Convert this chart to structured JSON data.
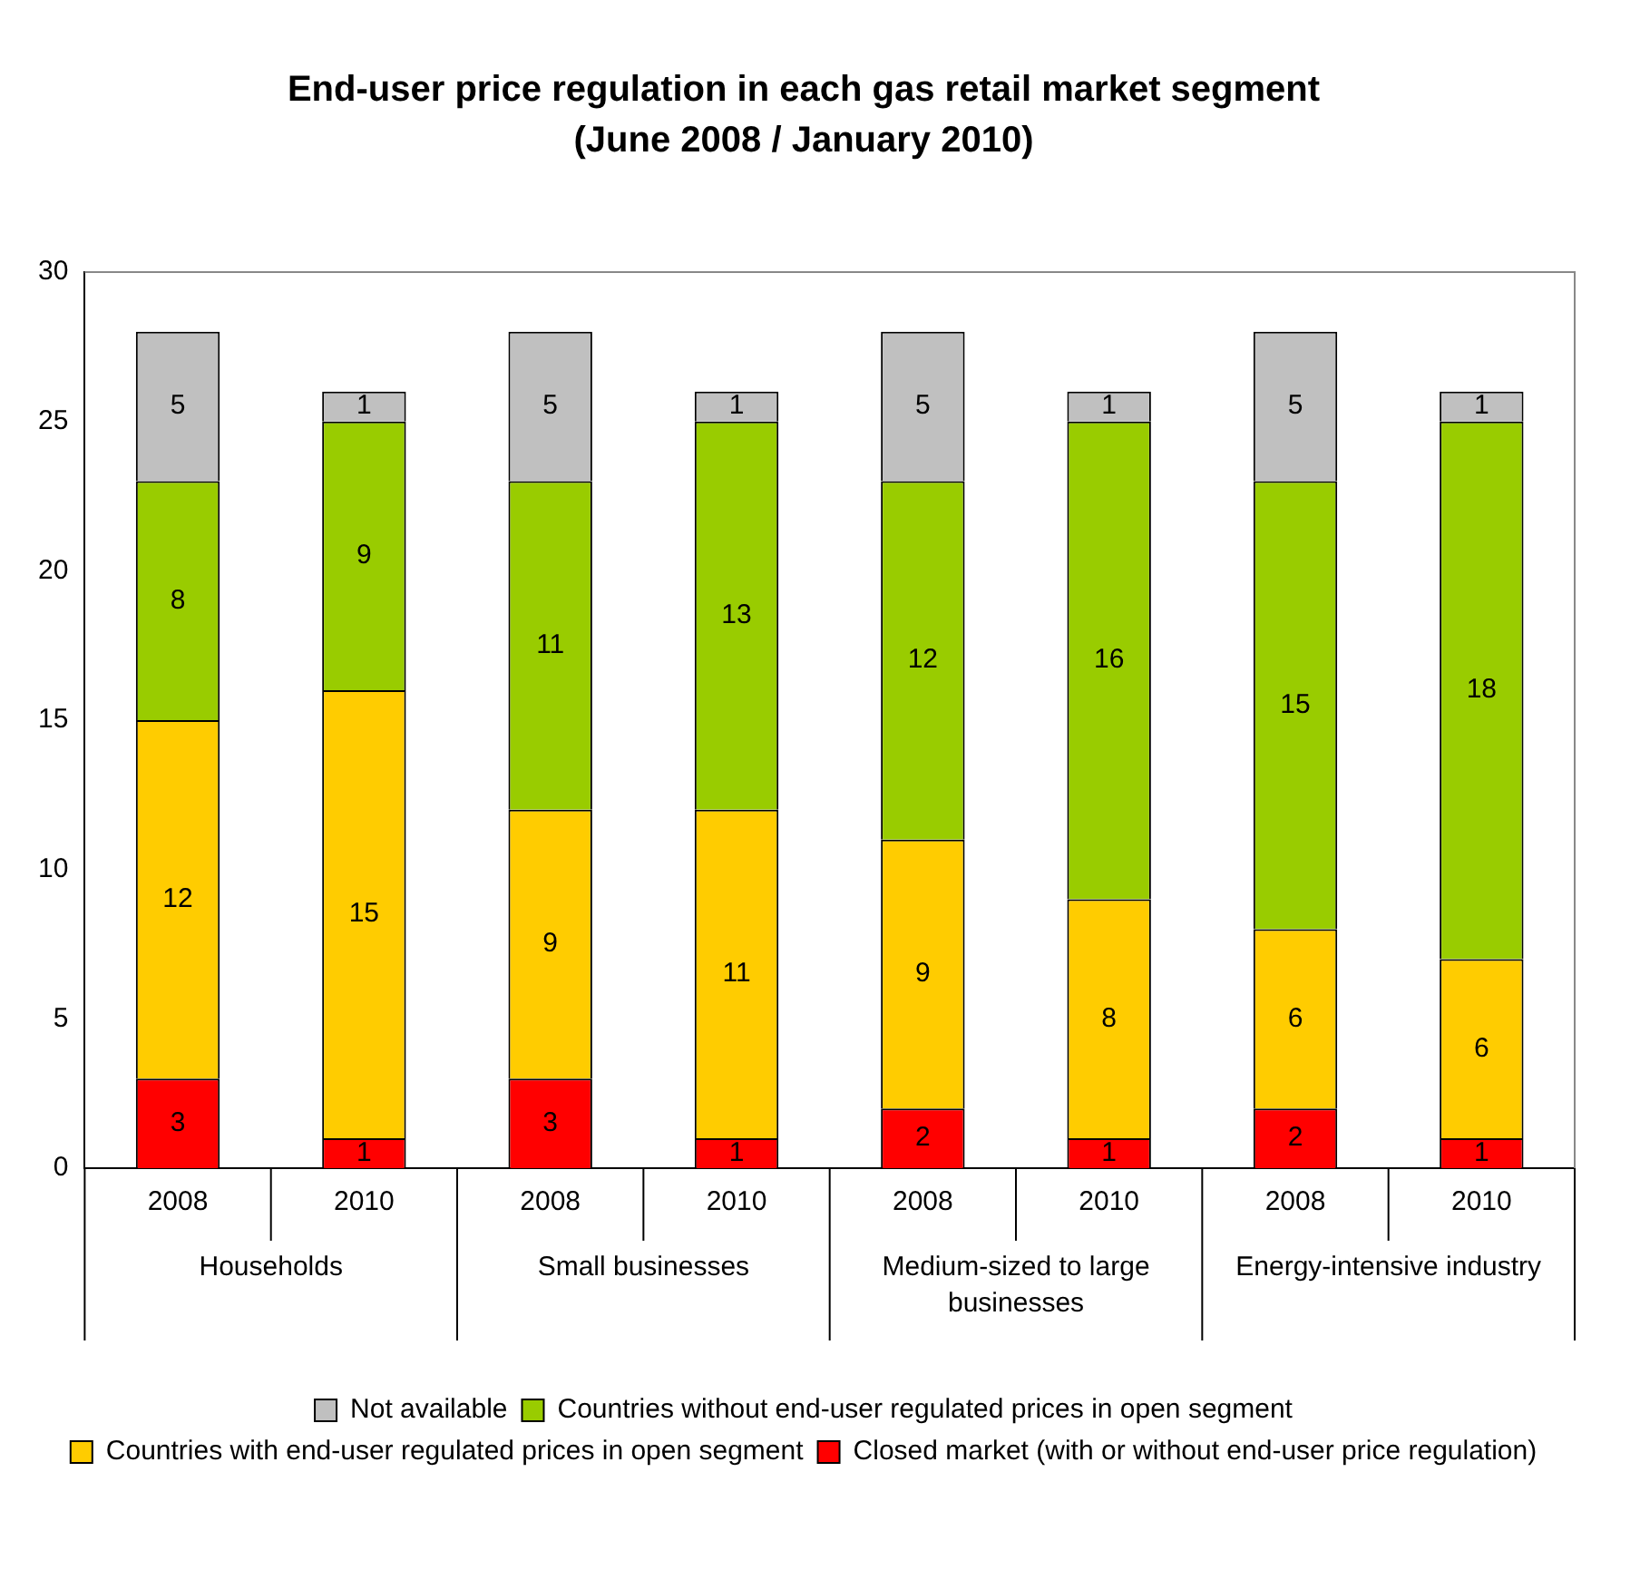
{
  "chart_data": {
    "type": "bar",
    "title": "End-user price regulation in each gas retail market segment",
    "subtitle": "(June 2008 / January 2010)",
    "categories": [
      "2008",
      "2010",
      "2008",
      "2010",
      "2008",
      "2010",
      "2008",
      "2010"
    ],
    "annotations": [
      "Households",
      "Small businesses",
      "Medium-sized to large businesses",
      "Energy-intensive industry"
    ],
    "stacked": true,
    "series": [
      {
        "name": "Closed market (with or without end-user price regulation)",
        "color": "#ff0000",
        "values": [
          3,
          1,
          3,
          1,
          2,
          1,
          2,
          1
        ]
      },
      {
        "name": "Countries with end-user regulated prices in open segment",
        "color": "#ffcc00",
        "values": [
          12,
          15,
          9,
          11,
          9,
          8,
          6,
          6
        ]
      },
      {
        "name": "Countries without end-user regulated prices in open segment",
        "color": "#99cc00",
        "values": [
          8,
          9,
          11,
          13,
          12,
          16,
          15,
          18
        ]
      },
      {
        "name": "Not available",
        "color": "#c0c0c0",
        "values": [
          5,
          1,
          5,
          1,
          5,
          1,
          5,
          1
        ]
      }
    ],
    "ylim": [
      0,
      30
    ],
    "yticks": [
      0,
      5,
      10,
      15,
      20,
      25,
      30
    ],
    "grid": false,
    "legend": "bottom",
    "data_labels": true
  }
}
